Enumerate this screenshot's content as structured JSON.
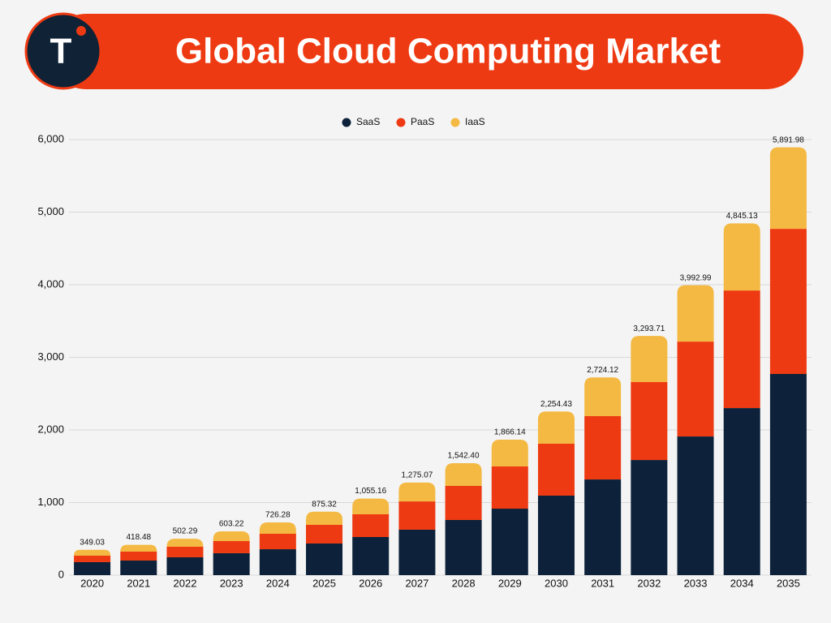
{
  "logo": "T",
  "chart_data": {
    "type": "stacked-bar",
    "title": "Global Cloud Computing  Market",
    "categories": [
      "2020",
      "2021",
      "2022",
      "2023",
      "2024",
      "2025",
      "2026",
      "2027",
      "2028",
      "2029",
      "2030",
      "2031",
      "2032",
      "2033",
      "2034",
      "2035"
    ],
    "series": [
      {
        "name": "SaaS",
        "color": "#0d223a",
        "values": [
          179,
          201,
          246,
          302,
          357,
          436,
          525,
          626,
          760,
          916,
          1095,
          1318,
          1586,
          1910,
          2301,
          2771
        ]
      },
      {
        "name": "PaaS",
        "color": "#ee3a12",
        "values": [
          89,
          123,
          145,
          167,
          213,
          257,
          313,
          390,
          469,
          581,
          715,
          872,
          1073,
          1307,
          1620,
          1999
        ]
      },
      {
        "name": "IaaS",
        "color": "#f4b942",
        "values": [
          81,
          94,
          111,
          134,
          156,
          182,
          217,
          259,
          313,
          369,
          444,
          534,
          635,
          776,
          924,
          1122
        ]
      }
    ],
    "totals": {
      "values": [
        349.03,
        418.48,
        502.29,
        603.22,
        726.28,
        875.32,
        1055.16,
        1275.07,
        1542.4,
        1866.14,
        2254.43,
        2724.12,
        3293.71,
        3992.99,
        4845.13,
        5891.98
      ],
      "value_labels": [
        "349.03",
        "418.48",
        "502.29",
        "603.22",
        "726.28",
        "875.32",
        "1,055.16",
        "1,275.07",
        "1,542.40",
        "1,866.14",
        "2,254.43",
        "2,724.12",
        "3,293.71",
        "3,992.99",
        "4,845.13",
        "5,891.98"
      ]
    },
    "ylim": [
      0,
      6000
    ],
    "yticks": [
      0,
      {
        "value": 1000,
        "label": "1,000"
      },
      {
        "value": 2000,
        "label": "2,000"
      },
      {
        "value": 3000,
        "label": "3,000"
      },
      {
        "value": 4000,
        "label": "4,000"
      },
      {
        "value": 5000,
        "label": "5,000"
      },
      {
        "value": 6000,
        "label": "6,000"
      }
    ],
    "grid": true,
    "legend": "top"
  }
}
